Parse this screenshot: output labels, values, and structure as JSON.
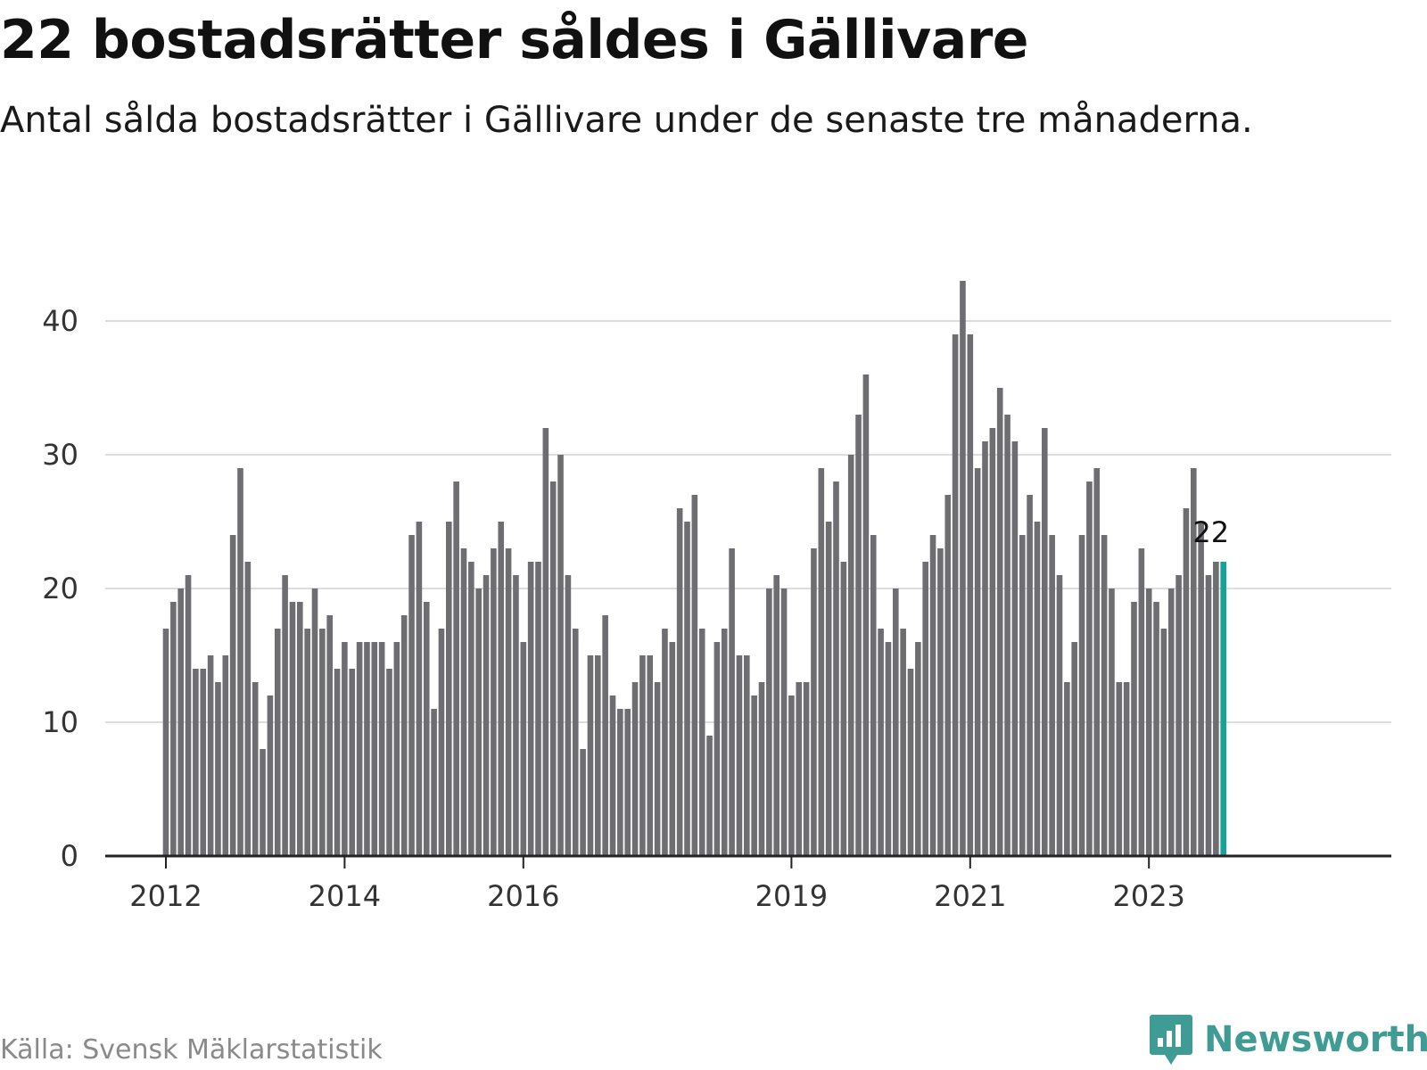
{
  "header": {
    "title": "22 bostadsrätter såldes i Gällivare",
    "subtitle": "Antal sålda bostadsrätter i Gällivare under de senaste tre månaderna."
  },
  "footer": {
    "source": "Källa: Svensk Mäklarstatistik",
    "brand": "Newsworthy"
  },
  "colors": {
    "bar": "#6e6d72",
    "highlight": "#14a396",
    "grid": "#dddddd",
    "axis": "#222222",
    "brand": "#3f9c95"
  },
  "chart_data": {
    "type": "bar",
    "title": "22 bostadsrätter såldes i Gällivare",
    "xlabel": "",
    "ylabel": "",
    "ylim": [
      0,
      45
    ],
    "yticks": [
      0,
      10,
      20,
      30,
      40
    ],
    "grid": true,
    "values": [
      17,
      19,
      20,
      21,
      14,
      14,
      15,
      13,
      15,
      24,
      29,
      22,
      13,
      8,
      12,
      17,
      21,
      19,
      19,
      17,
      20,
      17,
      18,
      14,
      16,
      14,
      16,
      16,
      16,
      16,
      14,
      16,
      18,
      24,
      25,
      19,
      11,
      17,
      25,
      28,
      23,
      22,
      20,
      21,
      23,
      25,
      23,
      21,
      16,
      22,
      22,
      32,
      28,
      30,
      21,
      17,
      8,
      15,
      15,
      18,
      12,
      11,
      11,
      13,
      15,
      15,
      13,
      17,
      16,
      26,
      25,
      27,
      17,
      9,
      16,
      17,
      23,
      15,
      15,
      12,
      13,
      20,
      21,
      20,
      12,
      13,
      13,
      23,
      29,
      25,
      28,
      22,
      30,
      33,
      36,
      24,
      17,
      16,
      20,
      17,
      14,
      16,
      22,
      24,
      23,
      27,
      39,
      43,
      39,
      29,
      31,
      32,
      35,
      33,
      31,
      24,
      27,
      25,
      32,
      24,
      21,
      13,
      16,
      24,
      28,
      29,
      24,
      20,
      13,
      13,
      19,
      23,
      20,
      19,
      17,
      20,
      21,
      26,
      29,
      25,
      21,
      22,
      22
    ],
    "x_ticks": [
      {
        "label": "2012",
        "index": 0
      },
      {
        "label": "2014",
        "index": 24
      },
      {
        "label": "2016",
        "index": 48
      },
      {
        "label": "2019",
        "index": 84
      },
      {
        "label": "2021",
        "index": 108
      },
      {
        "label": "2023",
        "index": 132
      }
    ],
    "highlight_index": 142,
    "highlight_label": "22"
  }
}
